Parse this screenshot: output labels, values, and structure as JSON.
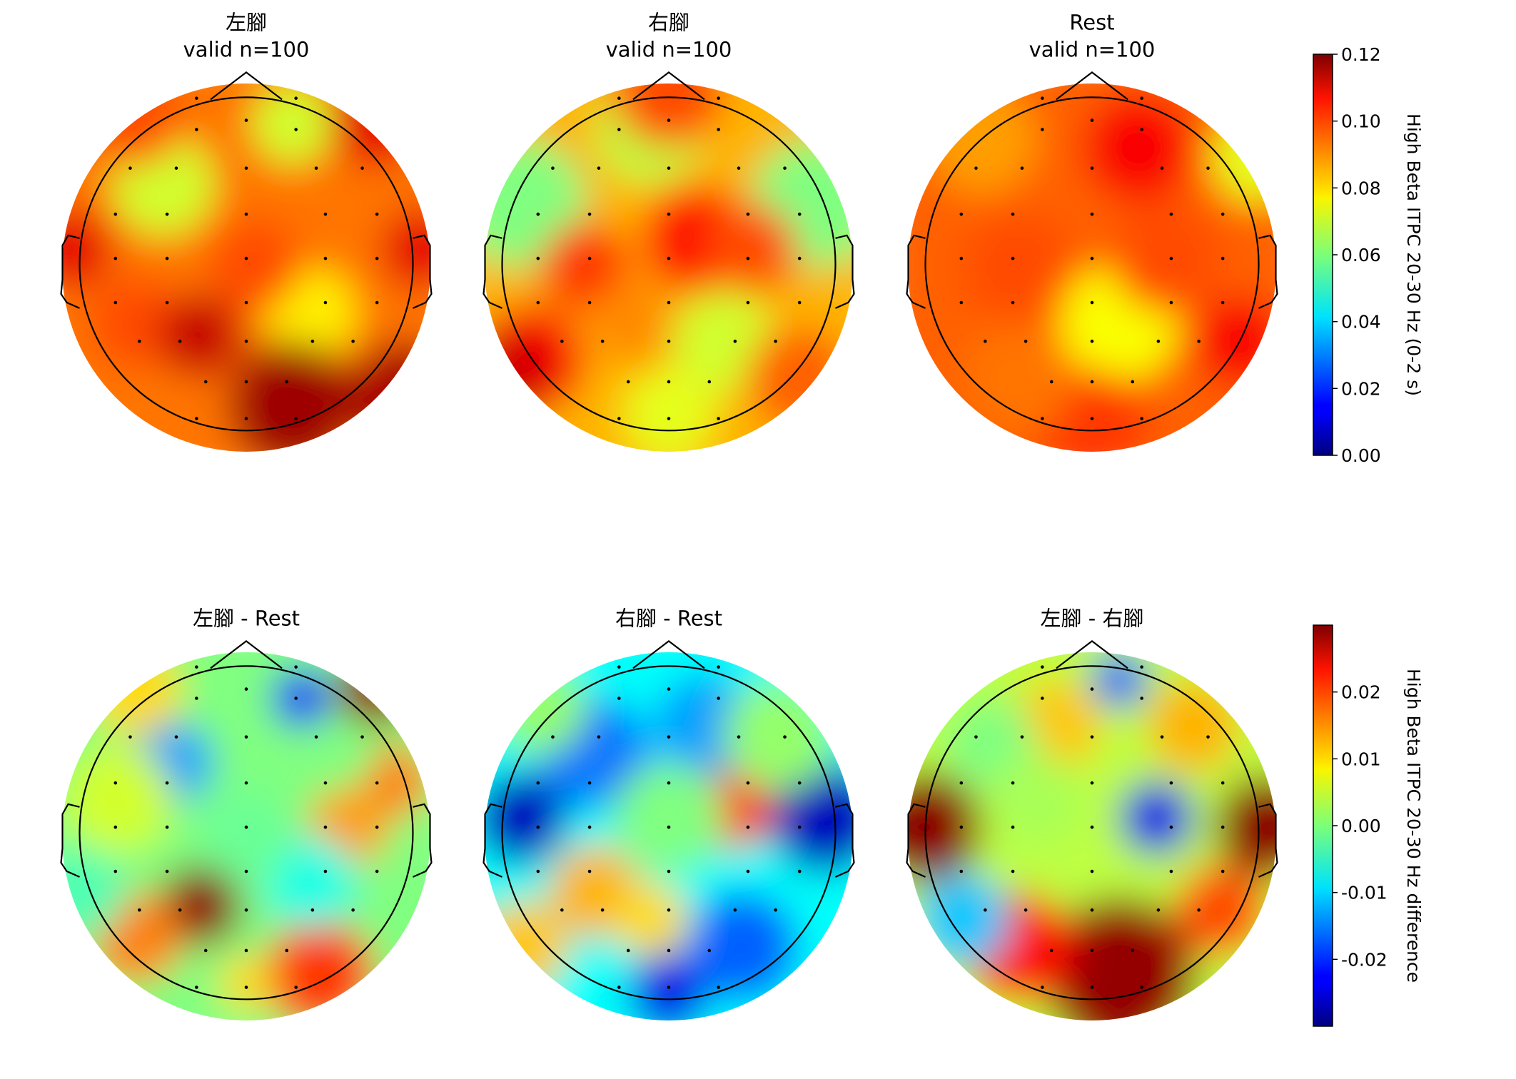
{
  "chart_data": [
    {
      "type": "heatmap",
      "subtype": "eeg-topomap",
      "row": 1,
      "panels": [
        {
          "title": "左腳",
          "subtitle": "valid n=100"
        },
        {
          "title": "右腳",
          "subtitle": "valid n=100"
        },
        {
          "title": "Rest",
          "subtitle": "valid n=100"
        }
      ],
      "colormap": "jet",
      "colorbar": {
        "label": "High Beta ITPC 20-30 Hz (0-2 s)",
        "range": [
          0.0,
          0.12
        ],
        "ticks": [
          0.0,
          0.02,
          0.04,
          0.06,
          0.08,
          0.1,
          0.12
        ],
        "tick_labels": [
          "0.00",
          "0.02",
          "0.04",
          "0.06",
          "0.08",
          "0.10",
          "0.12"
        ]
      }
    },
    {
      "type": "heatmap",
      "subtype": "eeg-topomap",
      "row": 2,
      "panels": [
        {
          "title": "左腳 - Rest"
        },
        {
          "title": "右腳 - Rest"
        },
        {
          "title": "左腳 - 右腳"
        }
      ],
      "colormap": "jet",
      "colorbar": {
        "label": "High Beta ITPC 20-30 Hz difference",
        "range": [
          -0.03,
          0.03
        ],
        "ticks": [
          -0.02,
          -0.01,
          0.0,
          0.01,
          0.02
        ],
        "tick_labels": [
          "-0.02",
          "-0.01",
          "0.00",
          "0.01",
          "0.02"
        ]
      }
    }
  ]
}
